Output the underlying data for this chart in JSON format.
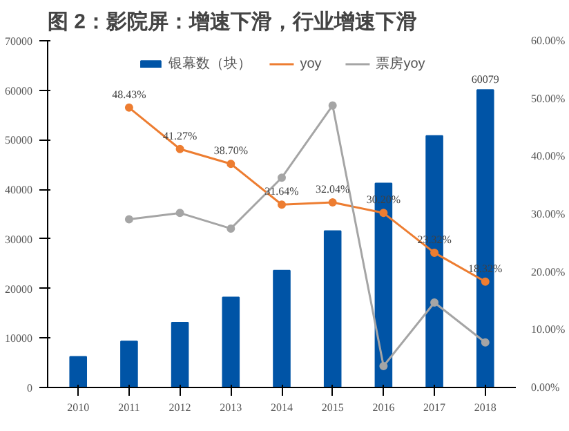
{
  "chart_data": {
    "type": "bar",
    "title": "图 2：影院屏：增速下滑，行业增速下滑",
    "categories": [
      "2010",
      "2011",
      "2012",
      "2013",
      "2014",
      "2015",
      "2016",
      "2017",
      "2018"
    ],
    "series": [
      {
        "name": "银幕数（块）",
        "color": "#0054a6",
        "values": [
          6200,
          9300,
          13100,
          18200,
          23600,
          31600,
          41200,
          50800,
          60079
        ],
        "value_labels": [
          null,
          null,
          null,
          null,
          null,
          null,
          null,
          null,
          "60079"
        ]
      },
      {
        "name": "yoy",
        "type": "line",
        "axis": "y2",
        "color": "#ed7d31",
        "marker": "circle",
        "values": [
          null,
          48.43,
          41.27,
          38.7,
          31.64,
          32.04,
          30.2,
          23.32,
          18.32
        ],
        "value_labels": [
          null,
          "48.43%",
          "41.27%",
          "38.70%",
          "31.64%",
          "32.04%",
          "30.20%",
          "23.32%",
          "18.32%"
        ]
      },
      {
        "name": "票房yoy",
        "type": "line",
        "axis": "y2",
        "color": "#a5a5a5",
        "marker": "circle",
        "values": [
          null,
          29.1,
          30.2,
          27.5,
          36.3,
          48.8,
          3.7,
          14.7,
          7.8
        ]
      }
    ],
    "ylim": [
      0,
      70000
    ],
    "yticks": [
      0,
      10000,
      20000,
      30000,
      40000,
      50000,
      60000,
      70000
    ],
    "y2lim": [
      0,
      60
    ],
    "y2ticks": [
      {
        "value": 0,
        "label": "0.00%"
      },
      {
        "value": 10,
        "label": "10.00%"
      },
      {
        "value": 20,
        "label": "20.00%"
      },
      {
        "value": 30,
        "label": "30.00%"
      },
      {
        "value": 40,
        "label": "40.00%"
      },
      {
        "value": 50,
        "label": "50.00%"
      },
      {
        "value": 60,
        "label": "60.00%"
      }
    ],
    "legend": "top",
    "grid": false
  }
}
